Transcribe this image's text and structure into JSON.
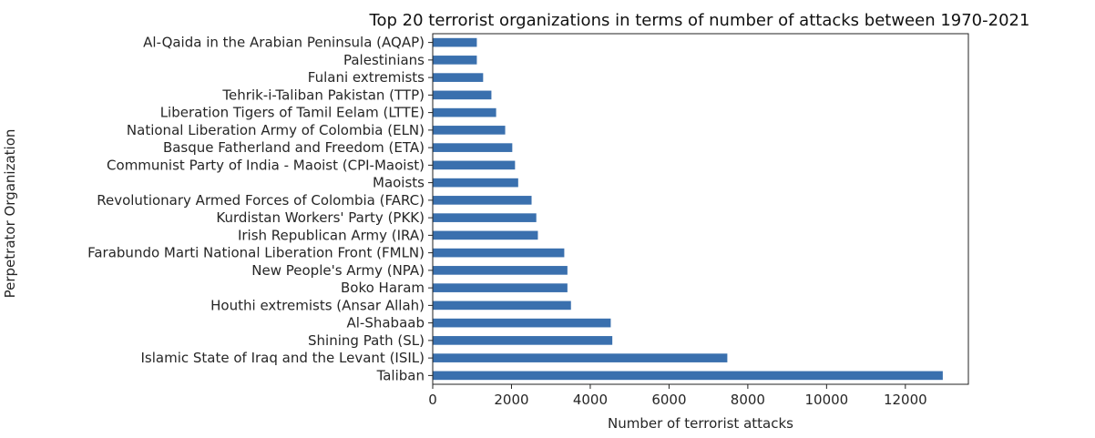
{
  "chart_data": {
    "type": "bar",
    "orientation": "horizontal",
    "title": "Top 20 terrorist organizations in terms of number of attacks between 1970-2021",
    "xlabel": "Number of terrorist attacks",
    "ylabel": "Perpetrator Organization",
    "xlim": [
      0,
      13600
    ],
    "xticks": [
      0,
      2000,
      4000,
      6000,
      8000,
      10000,
      12000
    ],
    "grid": false,
    "bar_color": "#3a70ae",
    "categories": [
      "Taliban",
      "Islamic State of Iraq and the Levant (ISIL)",
      "Shining Path (SL)",
      "Al-Shabaab",
      "Houthi extremists (Ansar Allah)",
      "Boko Haram",
      "New People's Army (NPA)",
      "Farabundo Marti National Liberation Front (FMLN)",
      "Irish Republican Army (IRA)",
      "Kurdistan Workers' Party (PKK)",
      "Revolutionary Armed Forces of Colombia (FARC)",
      "Maoists",
      "Communist Party of India - Maoist (CPI-Maoist)",
      "Basque Fatherland and Freedom (ETA)",
      "National Liberation Army of Colombia (ELN)",
      "Liberation Tigers of Tamil Eelam (LTTE)",
      "Tehrik-i-Taliban Pakistan (TTP)",
      "Fulani extremists",
      "Palestinians",
      "Al-Qaida in the Arabian Peninsula (AQAP)"
    ],
    "values": [
      12950,
      7480,
      4560,
      4520,
      3510,
      3420,
      3420,
      3340,
      2670,
      2630,
      2510,
      2170,
      2090,
      2020,
      1840,
      1610,
      1490,
      1280,
      1120,
      1120
    ]
  }
}
